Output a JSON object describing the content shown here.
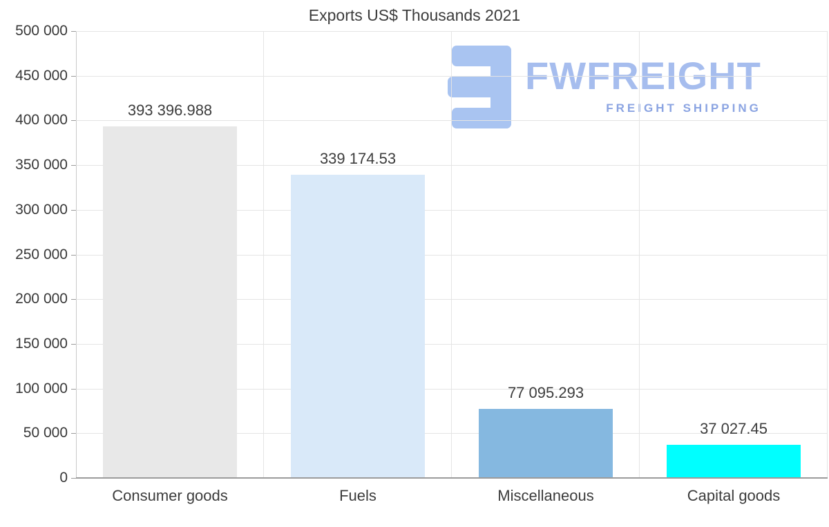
{
  "chart_data": {
    "type": "bar",
    "title": "Exports US$ Thousands 2021",
    "categories": [
      "Consumer goods",
      "Fuels",
      "Miscellaneous",
      "Capital goods"
    ],
    "values": [
      393396.988,
      339174.53,
      77095.293,
      37027.45
    ],
    "value_labels": [
      "393 396.988",
      "339 174.53",
      "77 095.293",
      "37 027.45"
    ],
    "bar_colors": [
      "#e8e8e8",
      "#d9e9f9",
      "#85b8e0",
      "#00ffff"
    ],
    "ylim": [
      0,
      500000
    ],
    "ytick_step": 50000,
    "ytick_labels": [
      "0",
      "50 000",
      "100 000",
      "150 000",
      "200 000",
      "250 000",
      "300 000",
      "350 000",
      "400 000",
      "450 000",
      "500 000"
    ],
    "xlabel": "",
    "ylabel": "",
    "grid": true,
    "legend_position": "none"
  },
  "brand": {
    "name": "FWFREIGHT",
    "tagline": "FREIGHT SHIPPING"
  },
  "colors": {
    "grid": "#e4e4e4",
    "axis": "#9b9b9b",
    "text": "#3e3e3e",
    "brand_name": "#a6bdee",
    "brand_tagline": "#8ba4e2",
    "brand_icon": "#a9c4f1"
  }
}
